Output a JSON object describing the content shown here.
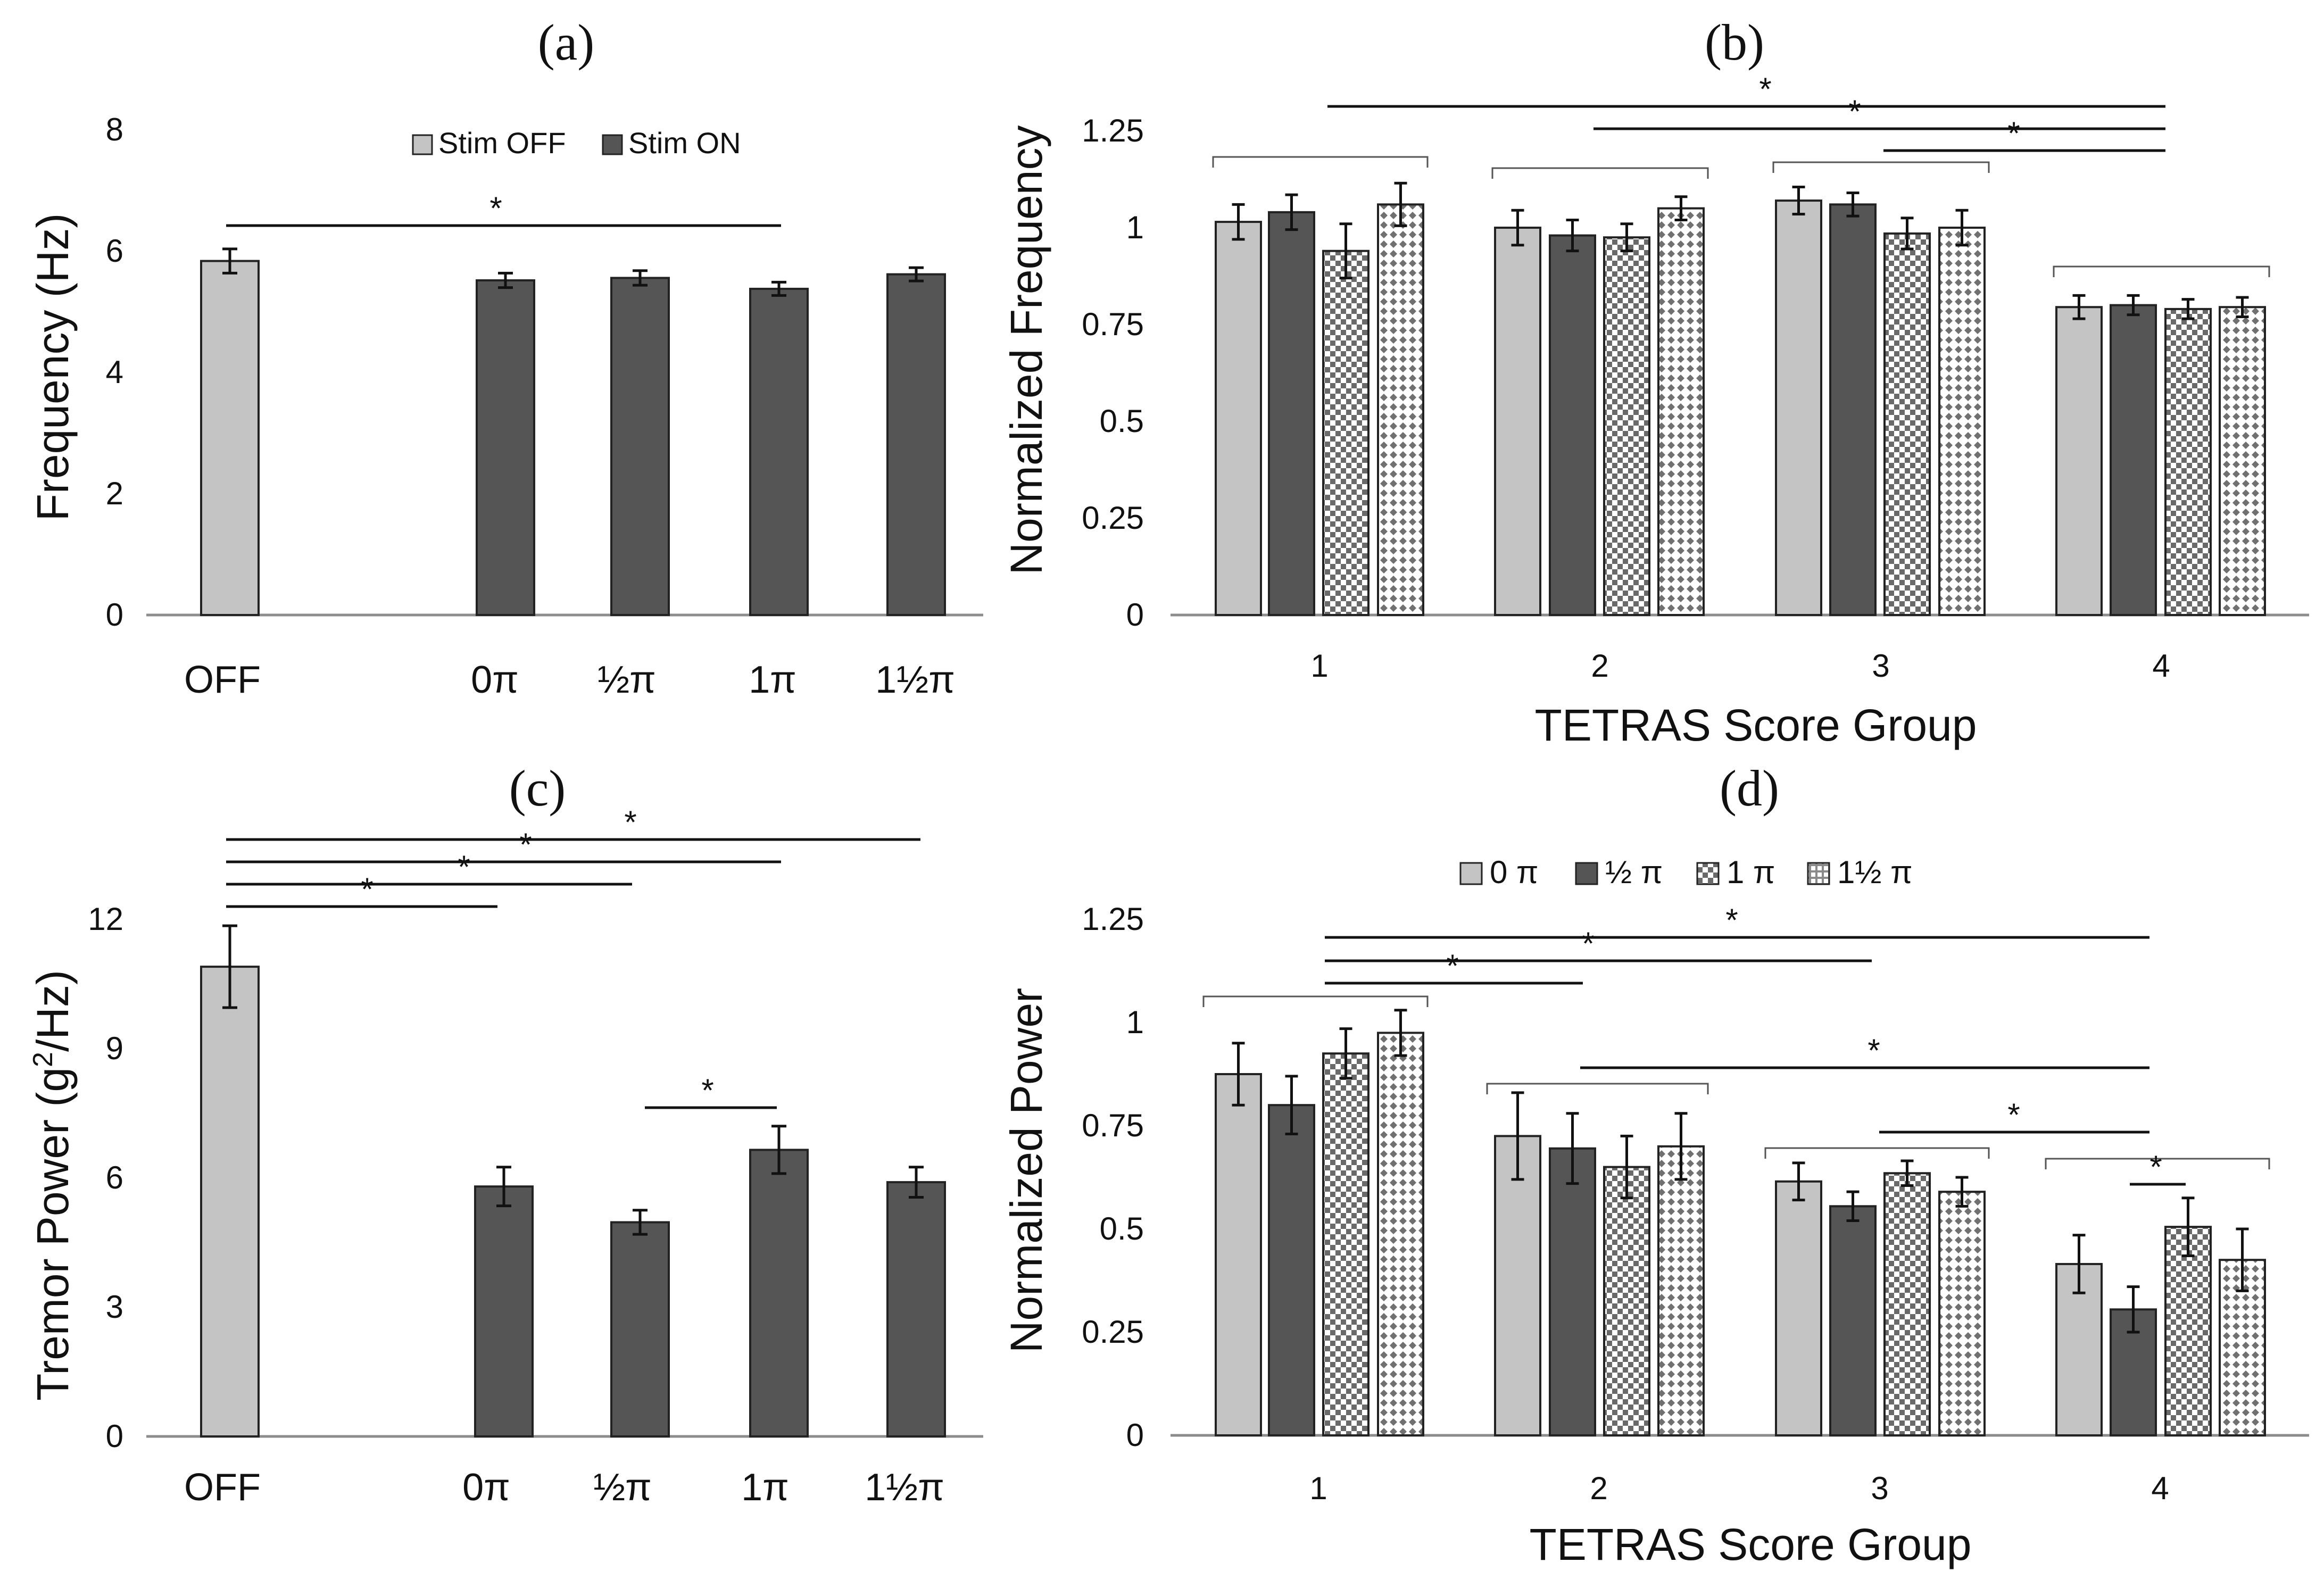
{
  "chart_data": [
    {
      "id": "a",
      "type": "bar",
      "panel_label": "(a)",
      "ylabel": "Frequency (Hz)",
      "xlabel": "",
      "ylim": [
        0,
        8
      ],
      "yticks": [
        "0",
        "2",
        "4",
        "6",
        "8"
      ],
      "categories": [
        "OFF",
        "0π",
        "½π",
        "1π",
        "1½π"
      ],
      "values": [
        5.85,
        5.53,
        5.57,
        5.39,
        5.63
      ],
      "errors": [
        0.2,
        0.12,
        0.12,
        0.11,
        0.11
      ],
      "bar_styles": [
        "light",
        "dark",
        "dark",
        "dark",
        "dark"
      ],
      "legend": [
        {
          "label": "Stim OFF",
          "style": "light"
        },
        {
          "label": "Stim ON",
          "style": "dark"
        }
      ],
      "legend_position": "top",
      "significance": [
        {
          "from": "OFF",
          "to": "1π",
          "label": "*"
        }
      ]
    },
    {
      "id": "b",
      "type": "bar",
      "panel_label": "(b)",
      "ylabel": "Normalized Frequency",
      "xlabel": "TETRAS Score Group",
      "ylim": [
        0,
        1.25
      ],
      "yticks": [
        "0",
        "0.25",
        "0.5",
        "0.75",
        "1",
        "1.25"
      ],
      "categories": [
        "1",
        "2",
        "3",
        "4"
      ],
      "series": [
        {
          "name": "0 π",
          "style": "light",
          "values": [
            1.015,
            1.0,
            1.07,
            0.795
          ],
          "errors": [
            0.045,
            0.045,
            0.035,
            0.03
          ]
        },
        {
          "name": "½ π",
          "style": "dark",
          "values": [
            1.04,
            0.98,
            1.06,
            0.8
          ],
          "errors": [
            0.045,
            0.04,
            0.03,
            0.025
          ]
        },
        {
          "name": "1 π",
          "style": "checker",
          "values": [
            0.94,
            0.975,
            0.985,
            0.79
          ],
          "errors": [
            0.07,
            0.035,
            0.04,
            0.025
          ]
        },
        {
          "name": "1½ π",
          "style": "diamond",
          "values": [
            1.06,
            1.05,
            1.0,
            0.795
          ],
          "errors": [
            0.055,
            0.03,
            0.045,
            0.025
          ]
        }
      ],
      "significance": [
        {
          "from": "1",
          "to": "4",
          "label": "*"
        },
        {
          "from": "2",
          "to": "4",
          "label": "*"
        },
        {
          "from": "3",
          "to": "4",
          "label": "*"
        }
      ]
    },
    {
      "id": "c",
      "type": "bar",
      "panel_label": "(c)",
      "ylabel_prefix": "Tremor Power (g",
      "ylabel_sup": "2",
      "ylabel_suffix": "/Hz)",
      "xlabel": "",
      "ylim": [
        0,
        12
      ],
      "yticks": [
        "0",
        "3",
        "6",
        "9",
        "12"
      ],
      "categories": [
        "OFF",
        "0π",
        "½π",
        "1π",
        "1½π"
      ],
      "values": [
        10.9,
        5.8,
        4.97,
        6.65,
        5.9
      ],
      "errors": [
        0.95,
        0.45,
        0.28,
        0.55,
        0.35
      ],
      "bar_styles": [
        "light",
        "dark",
        "dark",
        "dark",
        "dark"
      ],
      "significance": [
        {
          "from": "OFF",
          "to": "0π",
          "label": "*"
        },
        {
          "from": "OFF",
          "to": "½π",
          "label": "*"
        },
        {
          "from": "OFF",
          "to": "1π",
          "label": "*"
        },
        {
          "from": "OFF",
          "to": "1½π",
          "label": "*"
        },
        {
          "from": "½π",
          "to": "1π",
          "label": "*"
        }
      ]
    },
    {
      "id": "d",
      "type": "bar",
      "panel_label": "(d)",
      "ylabel": "Normalized Power",
      "xlabel": "TETRAS Score Group",
      "ylim": [
        0,
        1.25
      ],
      "yticks": [
        "0",
        "0.25",
        "0.5",
        "0.75",
        "1",
        "1.25"
      ],
      "categories": [
        "1",
        "2",
        "3",
        "4"
      ],
      "legend_position": "top",
      "series": [
        {
          "name": "0 π",
          "style": "light",
          "values": [
            0.875,
            0.725,
            0.615,
            0.415
          ],
          "errors": [
            0.075,
            0.105,
            0.045,
            0.07
          ]
        },
        {
          "name": "½ π",
          "style": "dark",
          "values": [
            0.8,
            0.695,
            0.555,
            0.305
          ],
          "errors": [
            0.07,
            0.085,
            0.035,
            0.055
          ]
        },
        {
          "name": "1 π",
          "style": "checker",
          "values": [
            0.925,
            0.65,
            0.635,
            0.505
          ],
          "errors": [
            0.06,
            0.075,
            0.03,
            0.07
          ]
        },
        {
          "name": "1½ π",
          "style": "diamond",
          "values": [
            0.975,
            0.7,
            0.59,
            0.425
          ],
          "errors": [
            0.055,
            0.08,
            0.035,
            0.075
          ]
        }
      ],
      "significance": [
        {
          "from": "1",
          "to": "2",
          "label": "*"
        },
        {
          "from": "1",
          "to": "3",
          "label": "*"
        },
        {
          "from": "1",
          "to": "4",
          "label": "*"
        },
        {
          "from": "2",
          "to": "4",
          "label": "*"
        },
        {
          "from": "3",
          "to": "4",
          "label": "*"
        },
        {
          "from": "4:½ π",
          "to": "4:1 π",
          "label": "*"
        }
      ]
    }
  ],
  "colors": {
    "light_bar": "#c4c4c4",
    "dark_bar": "#555555",
    "axis": "#8c8c8c",
    "ink": "#111111"
  }
}
